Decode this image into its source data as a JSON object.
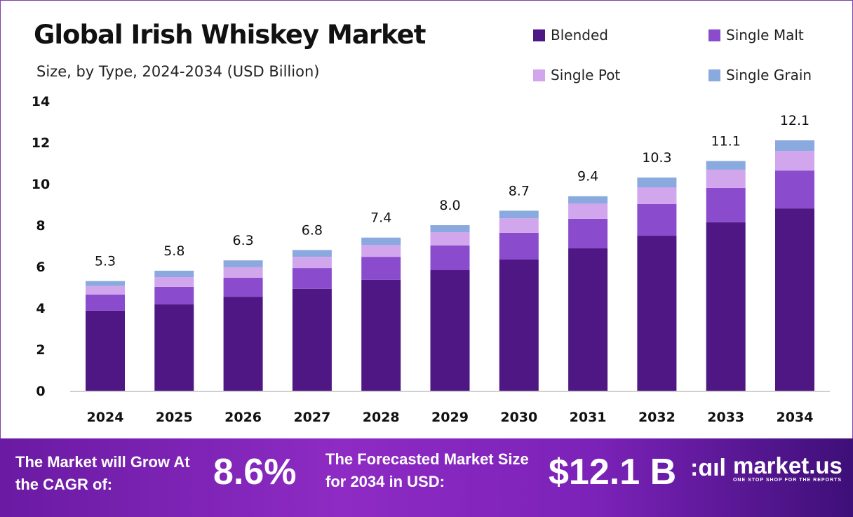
{
  "chart_data": {
    "type": "bar",
    "stacked": true,
    "title": "Global Irish Whiskey Market",
    "subtitle": "Size, by Type, 2024-2034 (USD Billion)",
    "xlabel": "",
    "ylabel": "",
    "ylim": [
      0,
      14
    ],
    "yticks": [
      0,
      2,
      4,
      6,
      8,
      10,
      12,
      14
    ],
    "grid": false,
    "legend_position": "top-right",
    "categories": [
      "2024",
      "2025",
      "2026",
      "2027",
      "2028",
      "2029",
      "2030",
      "2031",
      "2032",
      "2033",
      "2034"
    ],
    "totals": [
      "5.3",
      "5.8",
      "6.3",
      "6.8",
      "7.4",
      "8.0",
      "8.7",
      "9.4",
      "10.3",
      "11.1",
      "12.1"
    ],
    "series": [
      {
        "name": "Blended",
        "color": "#4f1784",
        "values": [
          3.87,
          4.17,
          4.54,
          4.92,
          5.36,
          5.83,
          6.34,
          6.88,
          7.49,
          8.14,
          8.81
        ]
      },
      {
        "name": "Single Malt",
        "color": "#8a4ccc",
        "values": [
          0.78,
          0.85,
          0.92,
          1.01,
          1.11,
          1.19,
          1.29,
          1.43,
          1.53,
          1.66,
          1.83
        ]
      },
      {
        "name": "Single Pot",
        "color": "#d1a6ec",
        "values": [
          0.41,
          0.47,
          0.51,
          0.54,
          0.58,
          0.64,
          0.7,
          0.74,
          0.81,
          0.88,
          0.95
        ]
      },
      {
        "name": "Single Grain",
        "color": "#8aa9de",
        "values": [
          0.24,
          0.31,
          0.33,
          0.33,
          0.35,
          0.34,
          0.37,
          0.35,
          0.47,
          0.42,
          0.51
        ]
      }
    ]
  },
  "footer": {
    "cagr_label": "The Market will Grow At the CAGR of:",
    "cagr_value": "8.6%",
    "forecast_label": "The Forecasted Market Size for 2034 in USD:",
    "forecast_value": "$12.1 B",
    "logo_name": "market.us",
    "logo_tagline": "ONE STOP SHOP FOR THE REPORTS"
  }
}
